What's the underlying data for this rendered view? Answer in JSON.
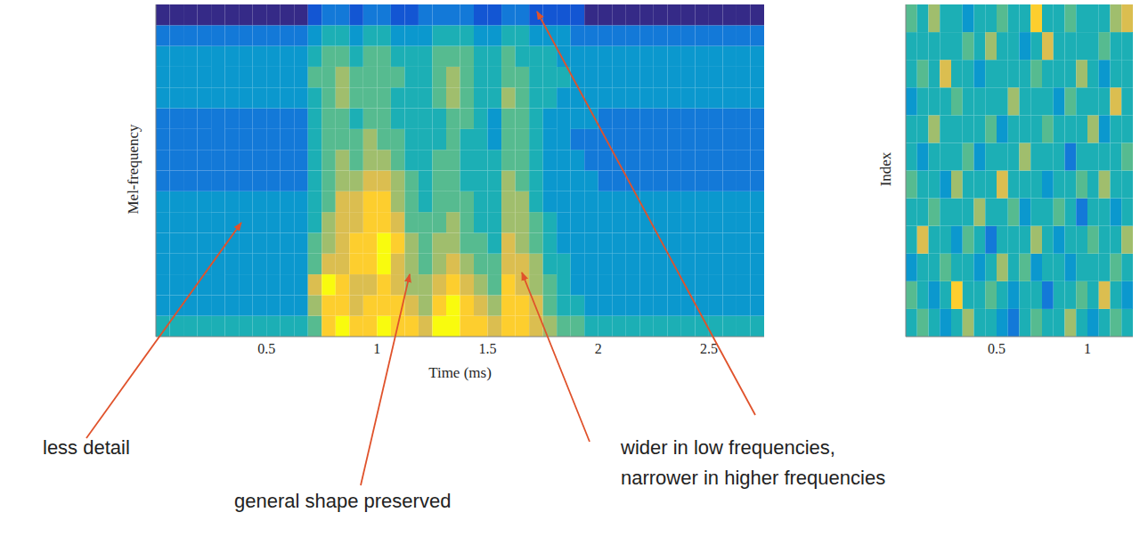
{
  "chart_data": [
    {
      "type": "heatmap",
      "xlabel": "Time (ms)",
      "ylabel": "Mel-frequency",
      "xlim": [
        0,
        2.75
      ],
      "xticks": [
        0.5,
        1,
        1.5,
        2,
        2.5
      ],
      "ylim": [
        0,
        16
      ],
      "tick_labels": "x",
      "clim": [
        0,
        9
      ],
      "x_edges": [
        0,
        0.0625,
        0.125,
        0.1875,
        0.25,
        0.3125,
        0.375,
        0.4375,
        0.5,
        0.5625,
        0.625,
        0.6875,
        0.75,
        0.8125,
        0.875,
        0.9375,
        1,
        1.0625,
        1.125,
        1.1875,
        1.25,
        1.3125,
        1.375,
        1.4375,
        1.5,
        1.5625,
        1.625,
        1.6875,
        1.75,
        1.8125,
        1.875,
        1.9375,
        2,
        2.0625,
        2.125,
        2.1875,
        2.25,
        2.3125,
        2.375,
        2.4375,
        2.5,
        2.5625,
        2.625,
        2.6875,
        2.75
      ],
      "y_edges": [
        0,
        1,
        2,
        3,
        4,
        5,
        6,
        7,
        8,
        9,
        10,
        11,
        12,
        13,
        14,
        15,
        16
      ],
      "cells": [
        [
          4,
          4,
          4,
          4,
          4,
          4,
          4,
          4,
          4,
          4,
          4,
          5,
          8,
          9,
          8,
          8,
          9,
          8,
          8,
          7,
          9,
          9,
          8,
          8,
          7,
          8,
          8,
          7,
          6,
          5,
          5,
          4,
          4,
          4,
          4,
          4,
          4,
          4,
          4,
          4,
          4,
          4,
          4,
          4
        ],
        [
          3,
          3,
          3,
          3,
          3,
          3,
          3,
          3,
          3,
          3,
          3,
          6,
          8,
          8,
          7,
          8,
          8,
          8,
          7,
          6,
          8,
          9,
          8,
          7,
          6,
          8,
          8,
          7,
          5,
          4,
          4,
          3,
          3,
          3,
          3,
          3,
          3,
          3,
          3,
          3,
          3,
          3,
          3,
          3
        ],
        [
          3,
          3,
          3,
          3,
          3,
          3,
          3,
          3,
          3,
          3,
          3,
          7,
          9,
          8,
          7,
          7,
          8,
          7,
          6,
          6,
          7,
          8,
          7,
          6,
          5,
          8,
          7,
          6,
          5,
          4,
          3,
          3,
          3,
          3,
          3,
          3,
          3,
          3,
          3,
          3,
          3,
          3,
          3,
          3
        ],
        [
          3,
          3,
          3,
          3,
          3,
          3,
          3,
          3,
          3,
          3,
          3,
          5,
          7,
          7,
          8,
          8,
          9,
          7,
          6,
          5,
          6,
          7,
          6,
          5,
          5,
          7,
          7,
          6,
          4,
          4,
          3,
          3,
          3,
          3,
          3,
          3,
          3,
          3,
          3,
          3,
          3,
          3,
          3,
          3
        ],
        [
          3,
          3,
          3,
          3,
          3,
          3,
          3,
          3,
          3,
          3,
          3,
          5,
          6,
          7,
          8,
          8,
          9,
          8,
          6,
          5,
          6,
          6,
          5,
          5,
          4,
          7,
          6,
          5,
          4,
          3,
          3,
          3,
          3,
          3,
          3,
          3,
          3,
          3,
          3,
          3,
          3,
          3,
          3,
          3
        ],
        [
          3,
          3,
          3,
          3,
          3,
          3,
          3,
          3,
          3,
          3,
          3,
          4,
          6,
          7,
          7,
          8,
          8,
          7,
          5,
          5,
          5,
          6,
          5,
          4,
          4,
          6,
          6,
          5,
          4,
          3,
          3,
          3,
          3,
          3,
          3,
          3,
          3,
          3,
          3,
          3,
          3,
          3,
          3,
          3
        ],
        [
          3,
          3,
          3,
          3,
          3,
          3,
          3,
          3,
          3,
          3,
          3,
          4,
          5,
          7,
          7,
          8,
          8,
          6,
          5,
          4,
          5,
          5,
          5,
          4,
          4,
          6,
          6,
          4,
          3,
          3,
          3,
          3,
          3,
          3,
          3,
          3,
          3,
          3,
          3,
          3,
          3,
          3,
          3,
          3
        ],
        [
          2,
          2,
          2,
          2,
          2,
          2,
          2,
          2,
          2,
          2,
          2,
          4,
          5,
          6,
          6,
          7,
          7,
          6,
          5,
          4,
          5,
          5,
          4,
          4,
          4,
          6,
          5,
          4,
          3,
          3,
          3,
          3,
          2,
          2,
          2,
          2,
          2,
          2,
          2,
          2,
          2,
          2,
          2,
          2
        ],
        [
          2,
          2,
          2,
          2,
          2,
          2,
          2,
          2,
          2,
          2,
          2,
          4,
          5,
          6,
          5,
          6,
          6,
          5,
          4,
          4,
          5,
          5,
          4,
          4,
          4,
          5,
          5,
          4,
          3,
          3,
          3,
          2,
          2,
          2,
          2,
          2,
          2,
          2,
          2,
          2,
          2,
          2,
          2,
          2
        ],
        [
          2,
          2,
          2,
          2,
          2,
          2,
          2,
          2,
          2,
          2,
          2,
          4,
          5,
          5,
          5,
          6,
          5,
          5,
          4,
          4,
          4,
          5,
          4,
          4,
          3,
          5,
          5,
          4,
          3,
          3,
          2,
          2,
          2,
          2,
          2,
          2,
          2,
          2,
          2,
          2,
          2,
          2,
          2,
          2
        ],
        [
          2,
          2,
          2,
          2,
          2,
          2,
          2,
          2,
          2,
          2,
          2,
          4,
          5,
          5,
          4,
          5,
          5,
          4,
          4,
          4,
          4,
          5,
          5,
          4,
          3,
          5,
          5,
          4,
          3,
          3,
          3,
          3,
          2,
          2,
          2,
          2,
          2,
          2,
          2,
          2,
          2,
          2,
          2,
          2
        ],
        [
          3,
          3,
          3,
          3,
          3,
          3,
          3,
          3,
          3,
          3,
          3,
          4,
          5,
          6,
          5,
          5,
          5,
          4,
          4,
          4,
          5,
          6,
          5,
          4,
          4,
          6,
          5,
          4,
          4,
          3,
          3,
          3,
          3,
          3,
          3,
          3,
          3,
          3,
          3,
          3,
          3,
          3,
          3,
          3
        ],
        [
          3,
          3,
          3,
          3,
          3,
          3,
          3,
          3,
          3,
          3,
          3,
          5,
          5,
          6,
          5,
          5,
          5,
          5,
          4,
          4,
          5,
          6,
          5,
          4,
          4,
          5,
          5,
          4,
          4,
          4,
          3,
          3,
          3,
          3,
          3,
          3,
          3,
          3,
          3,
          3,
          3,
          3,
          3,
          3
        ],
        [
          3,
          3,
          3,
          3,
          3,
          3,
          3,
          3,
          3,
          3,
          3,
          4,
          5,
          5,
          4,
          5,
          5,
          4,
          4,
          4,
          5,
          5,
          5,
          4,
          4,
          5,
          4,
          4,
          4,
          3,
          3,
          3,
          3,
          3,
          3,
          3,
          3,
          3,
          3,
          3,
          3,
          3,
          3,
          3
        ],
        [
          2,
          2,
          2,
          2,
          2,
          2,
          2,
          2,
          2,
          2,
          2,
          3,
          4,
          4,
          3,
          4,
          4,
          3,
          3,
          3,
          4,
          4,
          4,
          3,
          3,
          4,
          4,
          3,
          3,
          3,
          2,
          2,
          2,
          2,
          2,
          2,
          2,
          2,
          2,
          2,
          2,
          2,
          2,
          2
        ],
        [
          0,
          0,
          0,
          0,
          0,
          0,
          0,
          0,
          0,
          0,
          0,
          1,
          2,
          2,
          1,
          2,
          2,
          1,
          1,
          2,
          2,
          2,
          2,
          1,
          1,
          2,
          2,
          1,
          1,
          1,
          1,
          0,
          0,
          0,
          0,
          0,
          0,
          0,
          0,
          0,
          0,
          0,
          0,
          0
        ]
      ],
      "annotations": [
        {
          "lines": [
            "less detail"
          ]
        },
        {
          "lines": [
            "general shape preserved"
          ]
        },
        {
          "lines": [
            "wider in low frequencies,",
            "narrower in higher frequencies"
          ]
        }
      ]
    },
    {
      "type": "heatmap",
      "ylabel": "Index",
      "xlim": [
        0,
        1.25
      ],
      "xticks": [
        0.5,
        1
      ],
      "ylim": [
        0,
        12
      ],
      "tick_labels": "x",
      "clim": [
        0,
        9
      ],
      "x_edges": [
        0,
        0.0625,
        0.125,
        0.1875,
        0.25,
        0.3125,
        0.375,
        0.4375,
        0.5,
        0.5625,
        0.625,
        0.6875,
        0.75,
        0.8125,
        0.875,
        0.9375,
        1,
        1.0625,
        1.125,
        1.1875,
        1.25
      ],
      "y_edges": [
        0,
        1,
        2,
        3,
        4,
        5,
        6,
        7,
        8,
        9,
        10,
        11,
        12
      ],
      "cells": [
        [
          4,
          5,
          4,
          3,
          4,
          6,
          4,
          4,
          3,
          2,
          4,
          5,
          4,
          4,
          6,
          4,
          3,
          4,
          5,
          4
        ],
        [
          5,
          4,
          3,
          4,
          8,
          4,
          4,
          5,
          4,
          3,
          4,
          4,
          2,
          4,
          4,
          5,
          4,
          7,
          4,
          3
        ],
        [
          3,
          4,
          4,
          5,
          4,
          4,
          3,
          4,
          6,
          4,
          5,
          3,
          4,
          4,
          3,
          4,
          4,
          4,
          5,
          4
        ],
        [
          4,
          7,
          4,
          4,
          3,
          5,
          4,
          2,
          4,
          4,
          4,
          6,
          4,
          3,
          4,
          4,
          5,
          4,
          4,
          6
        ],
        [
          4,
          4,
          5,
          4,
          4,
          4,
          6,
          4,
          4,
          5,
          3,
          4,
          4,
          5,
          4,
          2,
          4,
          4,
          3,
          4
        ],
        [
          5,
          4,
          4,
          3,
          6,
          4,
          4,
          4,
          7,
          4,
          4,
          4,
          3,
          4,
          4,
          5,
          4,
          6,
          4,
          4
        ],
        [
          4,
          3,
          4,
          4,
          4,
          5,
          3,
          4,
          4,
          4,
          6,
          4,
          4,
          4,
          2,
          4,
          4,
          4,
          4,
          5
        ],
        [
          4,
          4,
          6,
          4,
          4,
          4,
          4,
          5,
          3,
          4,
          4,
          4,
          5,
          4,
          4,
          4,
          6,
          3,
          4,
          4
        ],
        [
          3,
          4,
          4,
          4,
          5,
          4,
          4,
          4,
          4,
          6,
          4,
          4,
          4,
          3,
          5,
          4,
          4,
          4,
          7,
          4
        ],
        [
          4,
          5,
          4,
          7,
          4,
          4,
          3,
          4,
          4,
          4,
          4,
          5,
          4,
          4,
          4,
          6,
          4,
          3,
          4,
          4
        ],
        [
          4,
          4,
          4,
          4,
          4,
          5,
          4,
          6,
          4,
          4,
          3,
          4,
          7,
          4,
          4,
          4,
          4,
          5,
          4,
          4
        ],
        [
          5,
          4,
          6,
          4,
          4,
          3,
          4,
          4,
          5,
          4,
          4,
          8,
          4,
          4,
          5,
          4,
          4,
          4,
          6,
          7
        ]
      ]
    }
  ]
}
